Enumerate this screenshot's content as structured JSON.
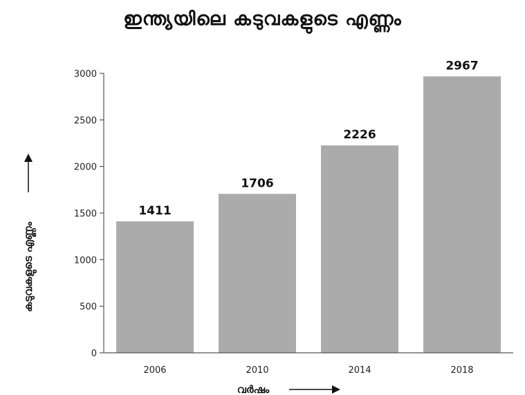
{
  "chart_data": {
    "type": "bar",
    "title": "ഇന്ത്യയിലെ കടുവകളുടെ എണ്ണം",
    "xlabel": "വർഷം",
    "ylabel": "കടുവകളുടെ എണ്ണം",
    "categories": [
      "2006",
      "2010",
      "2014",
      "2018"
    ],
    "values": [
      1411,
      1706,
      2226,
      2967
    ],
    "data_labels": [
      "1411",
      "1706",
      "2226",
      "2967"
    ],
    "ylim": [
      0,
      3000
    ],
    "yticks": [
      0,
      500,
      1000,
      1500,
      2000,
      2500,
      3000
    ],
    "ytick_labels": [
      "0",
      "500",
      "1000",
      "1500",
      "2000",
      "2500",
      "3000"
    ],
    "grid": false,
    "legend": "none",
    "colors": {
      "bar": "#ababab",
      "axis": "#555555",
      "text": "#111111"
    }
  }
}
